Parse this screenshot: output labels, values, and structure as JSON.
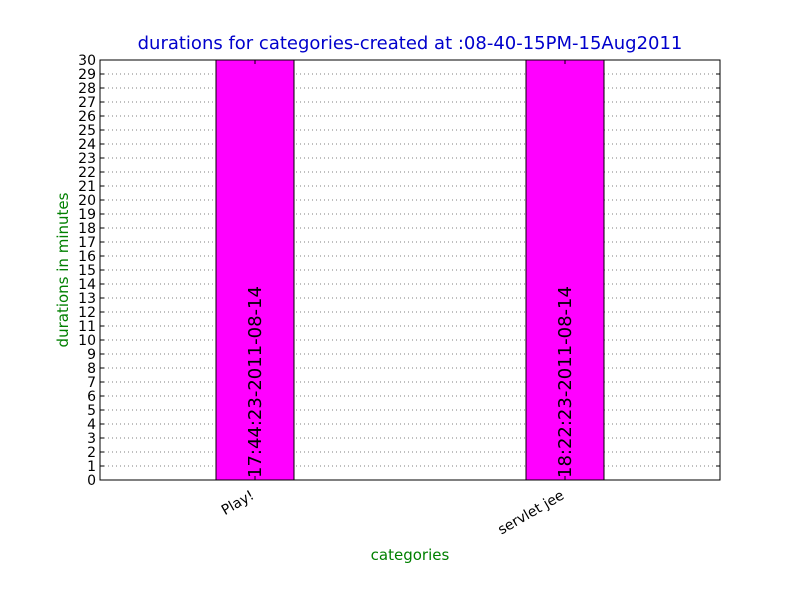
{
  "chart_data": {
    "type": "bar",
    "title": "durations for categories-created at :08-40-15PM-15Aug2011",
    "xlabel": "categories",
    "ylabel": "durations in  minutes",
    "categories": [
      "Play!",
      "servlet jee"
    ],
    "values": [
      30,
      30
    ],
    "bar_labels": [
      "17:44:23-2011-08-14",
      "18:22:23-2011-08-14"
    ],
    "ylim": [
      0,
      30
    ],
    "yticks": [
      0,
      1,
      2,
      3,
      4,
      5,
      6,
      7,
      8,
      9,
      10,
      11,
      12,
      13,
      14,
      15,
      16,
      17,
      18,
      19,
      20,
      21,
      22,
      23,
      24,
      25,
      26,
      27,
      28,
      29,
      30
    ],
    "grid": true,
    "bar_color": "#ff00ff",
    "title_color": "#0000cc",
    "label_color": "#008000"
  }
}
